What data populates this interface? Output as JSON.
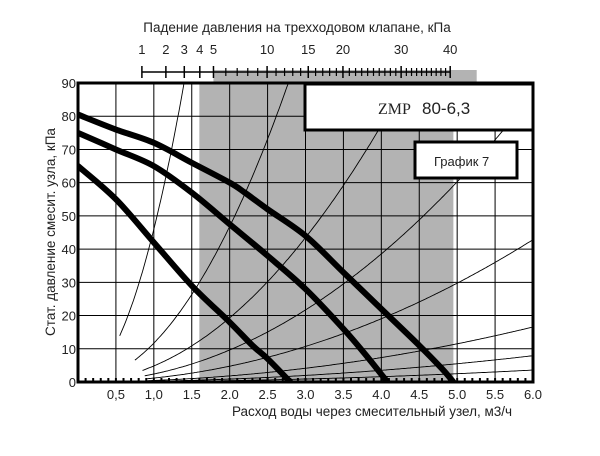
{
  "chart_data": {
    "type": "line",
    "xlabel": "Расход воды через смесительный узел, м3/ч",
    "ylabel": "Стат. давление смесит. узла, кПа",
    "top_axis_label": "Падение давления на трехходовом клапане, кПа",
    "xlim": [
      0,
      6.0
    ],
    "ylim": [
      0,
      90
    ],
    "grid": true,
    "x_ticks": [
      0.5,
      1.0,
      1.5,
      2.0,
      2.5,
      3.0,
      3.5,
      4.0,
      4.5,
      5.0,
      5.5,
      6.0
    ],
    "x_tick_labels": [
      "0,5",
      "1,0",
      "1.5",
      "2.0",
      "2.5",
      "3.0",
      "3.5",
      "4.0",
      "4.5",
      "5.0",
      "5.5",
      "6.0"
    ],
    "y_ticks": [
      0,
      10,
      20,
      30,
      40,
      50,
      60,
      70,
      80,
      90
    ],
    "top_ticks": [
      1,
      2,
      3,
      4,
      5,
      10,
      15,
      20,
      30,
      40
    ],
    "top_range": [
      1,
      40
    ],
    "top_shaded_range_kpa": [
      5,
      46
    ],
    "shaded_flow_range": [
      1.6,
      4.95
    ],
    "shade_color": "#b3b3b3",
    "title_box": "ZMP",
    "title_model": "80-6,3",
    "chart_label": "График 7",
    "pump_curves": [
      {
        "points": [
          [
            0,
            80.5
          ],
          [
            0.5,
            76
          ],
          [
            1.0,
            72
          ],
          [
            1.5,
            66
          ],
          [
            2.0,
            60
          ],
          [
            2.2,
            57
          ],
          [
            2.5,
            52
          ],
          [
            3.0,
            44
          ],
          [
            3.5,
            33
          ],
          [
            4.0,
            22
          ],
          [
            4.5,
            11
          ],
          [
            4.8,
            4
          ],
          [
            4.95,
            0
          ]
        ]
      },
      {
        "points": [
          [
            0,
            75
          ],
          [
            0.5,
            70
          ],
          [
            1.0,
            65
          ],
          [
            1.5,
            57
          ],
          [
            2.0,
            47.5
          ],
          [
            2.5,
            38
          ],
          [
            3.0,
            28
          ],
          [
            3.5,
            16
          ],
          [
            3.8,
            8
          ],
          [
            4.08,
            0
          ]
        ]
      },
      {
        "points": [
          [
            0,
            65
          ],
          [
            0.5,
            55
          ],
          [
            1.0,
            42
          ],
          [
            1.5,
            29
          ],
          [
            2.0,
            18
          ],
          [
            2.3,
            11
          ],
          [
            2.5,
            7
          ],
          [
            2.8,
            0
          ]
        ]
      }
    ],
    "system_curves": [
      {
        "k": 46,
        "x_start": 0.55
      },
      {
        "k": 11.7,
        "x_start": 0.75
      },
      {
        "k": 4.83,
        "x_start": 0.85
      },
      {
        "k": 2.41,
        "x_start": 0.88
      },
      {
        "k": 1.19,
        "x_start": 0.9
      },
      {
        "k": 0.46,
        "x_start": 0.9
      },
      {
        "k": 0.22,
        "x_start": 0.9
      },
      {
        "k": 0.1,
        "x_start": 0.9
      }
    ]
  }
}
